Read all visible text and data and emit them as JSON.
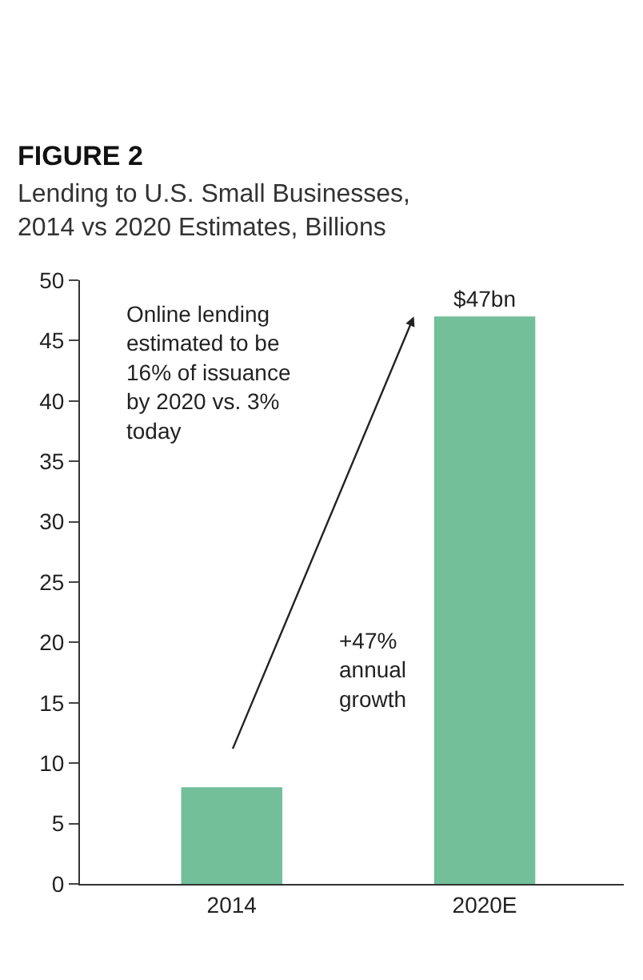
{
  "chart_data": {
    "type": "bar",
    "title": "FIGURE 2",
    "subtitle": "Lending to U.S. Small Businesses,\n2014 vs 2020 Estimates, Billions",
    "categories": [
      "2014",
      "2020E"
    ],
    "values": [
      8,
      47
    ],
    "color": "#72bf9a",
    "value_labels": [
      null,
      "$47bn"
    ],
    "ylim": [
      0,
      50
    ],
    "yticks": [
      0,
      5,
      10,
      15,
      20,
      25,
      30,
      35,
      40,
      45,
      50
    ],
    "legend": false,
    "annotations": [
      "Online lending\nestimated to be\n16% of issuance\nby 2020 vs. 3%\ntoday",
      "+47%\nannual\ngrowth"
    ]
  }
}
